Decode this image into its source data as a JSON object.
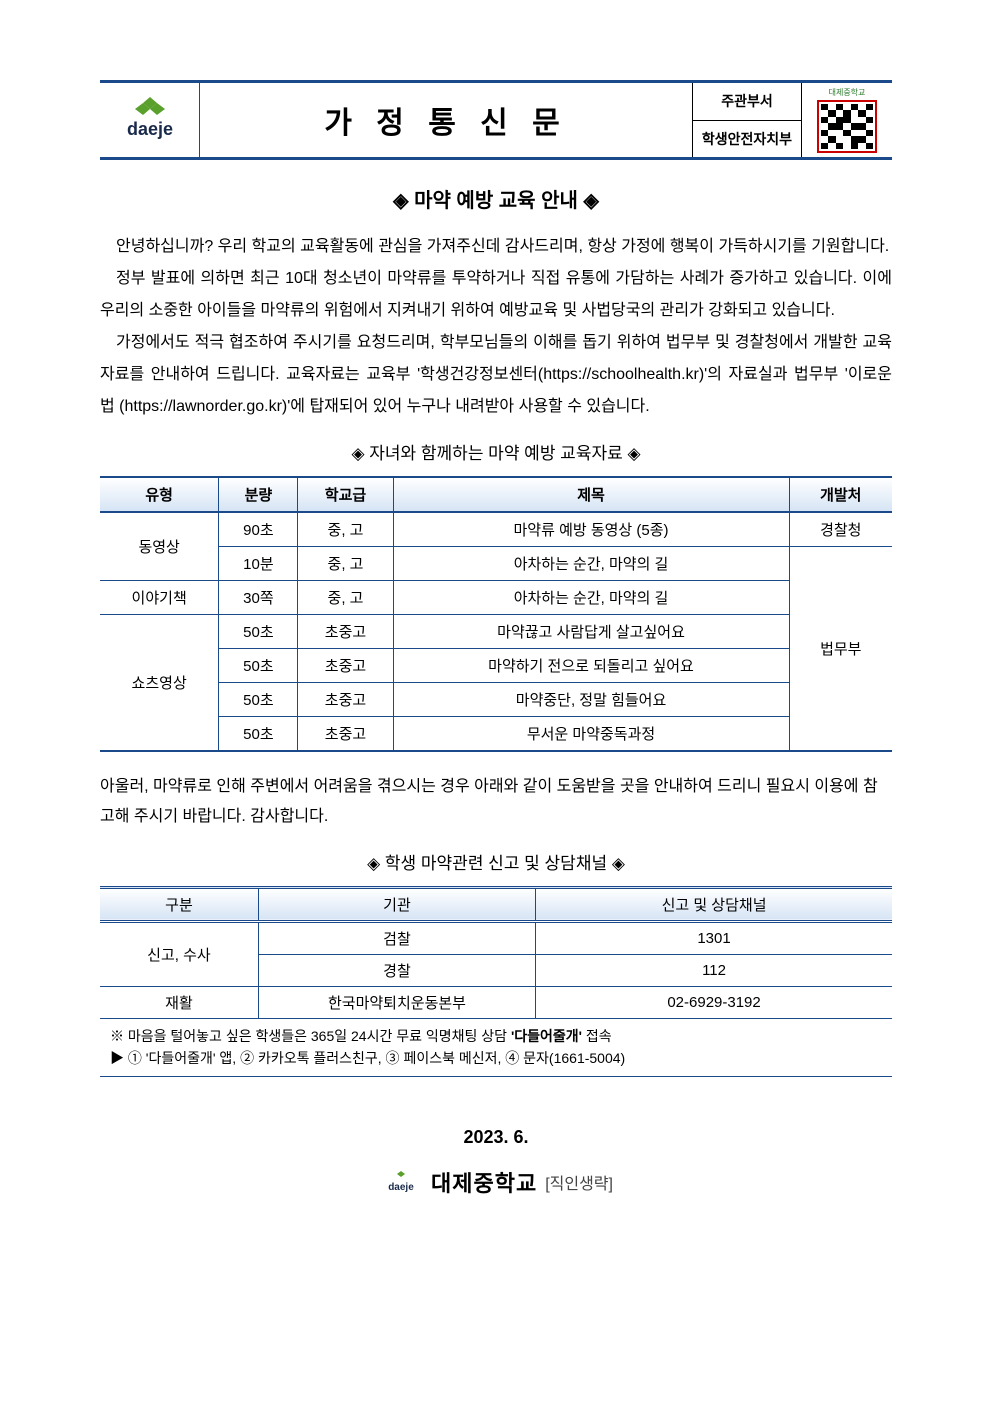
{
  "header": {
    "title": "가 정 통 신 문",
    "dept_label": "주관부서",
    "dept_name": "학생안전자치부",
    "qr_label": "대제중학교",
    "logo_text": "daeje",
    "logo_green": "#5aa02c",
    "logo_text_color": "#1a2a4a",
    "border_color": "#1a4a8a"
  },
  "subtitle": "◈ 마약 예방 교육 안내 ◈",
  "paragraphs": {
    "p1": "안녕하십니까? 우리 학교의 교육활동에 관심을 가져주신데 감사드리며, 항상 가정에 행복이 가득하시기를 기원합니다.",
    "p2": "정부 발표에 의하면 최근 10대 청소년이 마약류를 투약하거나 직접 유통에 가담하는 사례가 증가하고 있습니다. 이에 우리의 소중한 아이들을 마약류의 위험에서 지켜내기 위하여 예방교육 및 사법당국의 관리가 강화되고 있습니다.",
    "p3": "가정에서도 적극 협조하여 주시기를 요청드리며, 학부모님들의 이해를 돕기 위하여 법무부 및 경찰청에서 개발한 교육자료를 안내하여 드립니다. 교육자료는 교육부 '학생건강정보센터(https://schoolhealth.kr)'의 자료실과 법무부 '이로운 법 (https://lawnorder.go.kr)'에 탑재되어 있어 누구나 내려받아 사용할 수 있습니다."
  },
  "section1_heading": "◈ 자녀와 함께하는 마약 예방 교육자료 ◈",
  "materials": {
    "columns": [
      "유형",
      "분량",
      "학교급",
      "제목",
      "개발처"
    ],
    "col_widths": [
      "15%",
      "10%",
      "12%",
      "50%",
      "13%"
    ],
    "rows": [
      {
        "type": "동영상",
        "type_rowspan": 2,
        "duration": "90초",
        "level": "중, 고",
        "title": "마약류 예방 동영상 (5종)",
        "dev": "경찰청",
        "dev_rowspan": 1
      },
      {
        "duration": "10분",
        "level": "중, 고",
        "title": "아차하는 순간, 마약의 길",
        "dev": "법무부",
        "dev_rowspan": 6
      },
      {
        "type": "이야기책",
        "type_rowspan": 1,
        "duration": "30쪽",
        "level": "중, 고",
        "title": "아차하는 순간, 마약의 길"
      },
      {
        "type": "쇼츠영상",
        "type_rowspan": 4,
        "duration": "50초",
        "level": "초중고",
        "title": "마약끊고 사람답게 살고싶어요"
      },
      {
        "duration": "50초",
        "level": "초중고",
        "title": "마약하기 전으로 되돌리고 싶어요"
      },
      {
        "duration": "50초",
        "level": "초중고",
        "title": "마약중단, 정말 힘들어요"
      },
      {
        "duration": "50초",
        "level": "초중고",
        "title": "무서운 마약중독과정"
      }
    ]
  },
  "midtext": "아울러, 마약류로 인해 주변에서 어려움을 겪으시는 경우 아래와 같이 도움받을 곳을 안내하여 드리니 필요시 이용에 참고해 주시기 바랍니다. 감사합니다.",
  "section2_heading": "◈ 학생 마약관련 신고 및 상담채널 ◈",
  "channels": {
    "columns": [
      "구분",
      "기관",
      "신고 및 상담채널"
    ],
    "col_widths": [
      "20%",
      "35%",
      "45%"
    ],
    "rows": [
      {
        "cat": "신고, 수사",
        "cat_rowspan": 2,
        "org": "검찰",
        "contact": "1301"
      },
      {
        "org": "경찰",
        "contact": "112"
      },
      {
        "cat": "재활",
        "cat_rowspan": 1,
        "org": "한국마약퇴치운동본부",
        "contact": "02-6929-3192"
      }
    ],
    "note_line1": "※ 마음을 털어놓고 싶은 학생들은 365일 24시간 무료 익명채팅 상담 '다들어줄개' 접속",
    "note_line2": "▶ ① '다들어줄개' 앱, ② 카카오톡 플러스친구, ③ 페이스북 메신저, ④ 문자(1661-5004)"
  },
  "footer": {
    "date": "2023. 6.",
    "school": "대제중학교",
    "stamp": "[직인생략]"
  }
}
